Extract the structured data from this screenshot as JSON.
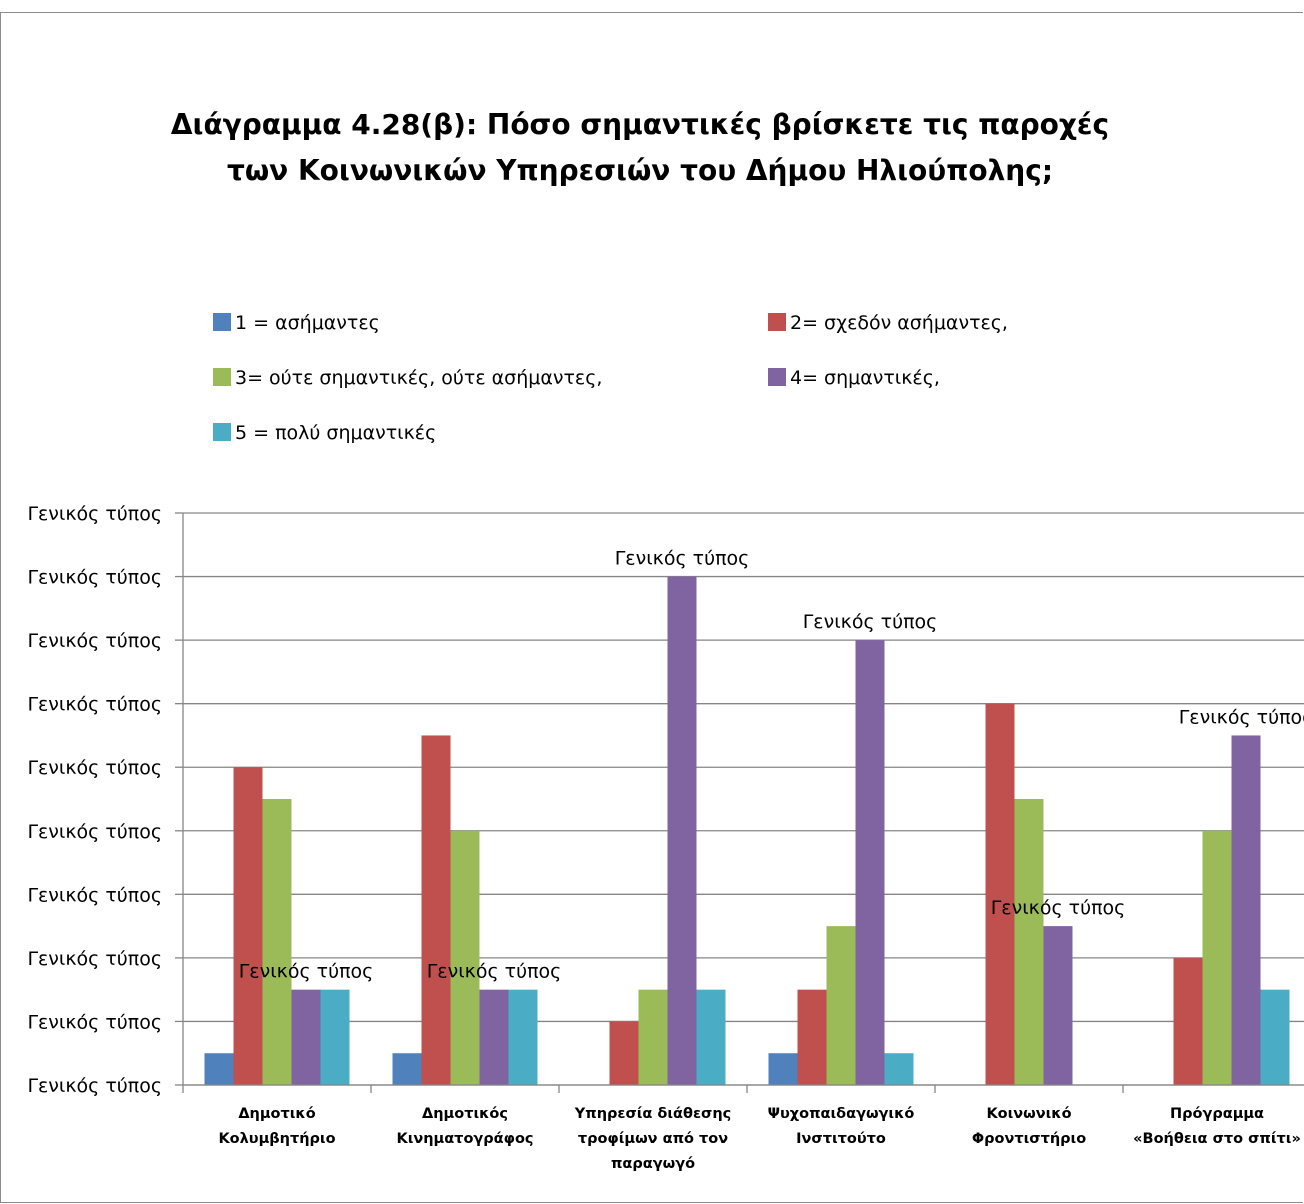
{
  "chart_data": {
    "type": "bar",
    "title": [
      "Διάγραμμα 4.28(β): Πόσο σημαντικές βρίσκετε τις παροχές",
      "των Κοινωνικών Υπηρεσιών του Δήμου Ηλιούπολης;"
    ],
    "categories": [
      [
        "Δημοτικό",
        "Κολυμβητήριο"
      ],
      [
        "Δημοτικός",
        "Κινηματογράφος"
      ],
      [
        "Υπηρεσία διάθεσης",
        "τροφίμων από τον",
        "παραγωγό"
      ],
      [
        "Ψυχοπαιδαγωγικό",
        "Ινστιτούτο"
      ],
      [
        "Κοινωνικό",
        "Φροντιστήριο"
      ],
      [
        "Πρόγραμμα",
        "«Βοήθεια στο σπίτι»"
      ]
    ],
    "series": [
      {
        "name": "1 = ασήμαντες",
        "color": "#4f81bd",
        "values": [
          1,
          1,
          0,
          1,
          0,
          0
        ]
      },
      {
        "name": "2= σχεδόν ασήμαντες,",
        "color": "#c0504d",
        "values": [
          10,
          11,
          2,
          3,
          12,
          4
        ]
      },
      {
        "name": "3= ούτε σημαντικές, ούτε ασήμαντες,",
        "color": "#9bbb59",
        "values": [
          9,
          8,
          3,
          5,
          9,
          8
        ]
      },
      {
        "name": "4= σημαντικές,",
        "color": "#8064a2",
        "values": [
          3,
          3,
          16,
          14,
          5,
          11
        ]
      },
      {
        "name": "5 = πολύ σημαντικές",
        "color": "#4bacc6",
        "values": [
          3,
          3,
          3,
          1,
          0,
          3
        ]
      }
    ],
    "ylim": [
      0,
      18
    ],
    "y_tick_step": 2,
    "y_tick_label": "Γενικός τύπος",
    "data_label_text": "Γενικός τύπος",
    "data_labels": [
      {
        "category": 0,
        "series": 3
      },
      {
        "category": 1,
        "series": 3
      },
      {
        "category": 2,
        "series": 3
      },
      {
        "category": 3,
        "series": 3
      },
      {
        "category": 4,
        "series": 3
      },
      {
        "category": 5,
        "series": 3
      }
    ],
    "grid": true,
    "legend_position": "top"
  }
}
